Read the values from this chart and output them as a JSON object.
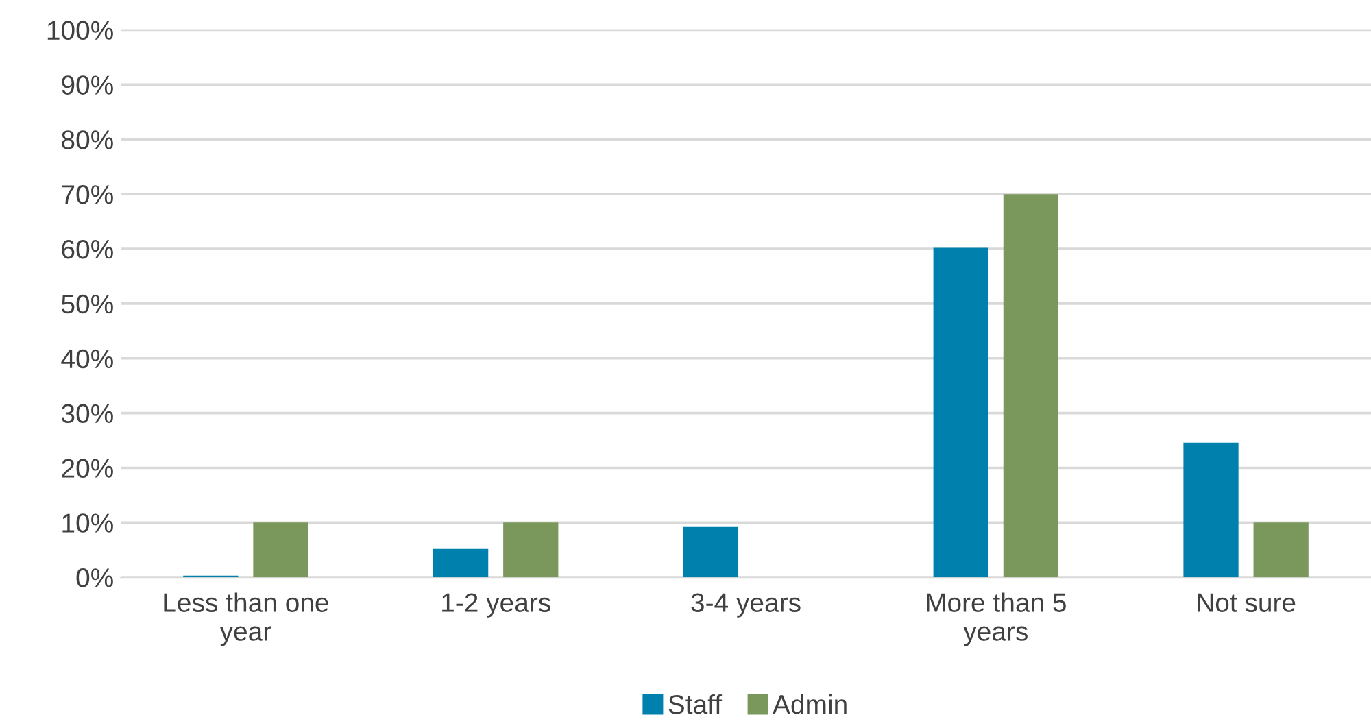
{
  "chart_data": {
    "type": "bar",
    "categories": [
      "Less than one\nyear",
      "1-2 years",
      "3-4 years",
      "More than 5\nyears",
      "Not sure"
    ],
    "series": [
      {
        "name": "Staff",
        "color": "#0081ad",
        "values": [
          0.3,
          5.2,
          9.2,
          60.2,
          24.6
        ]
      },
      {
        "name": "Admin",
        "color": "#7a985c",
        "values": [
          10,
          10,
          0,
          70,
          10
        ]
      }
    ],
    "ylim": [
      0,
      100
    ],
    "yticks": [
      {
        "value": 0,
        "label": "0%"
      },
      {
        "value": 10,
        "label": "10%"
      },
      {
        "value": 20,
        "label": "20%"
      },
      {
        "value": 30,
        "label": "30%"
      },
      {
        "value": 40,
        "label": "40%"
      },
      {
        "value": 50,
        "label": "50%"
      },
      {
        "value": 60,
        "label": "60%"
      },
      {
        "value": 70,
        "label": "70%"
      },
      {
        "value": 80,
        "label": "80%"
      },
      {
        "value": 90,
        "label": "90%"
      },
      {
        "value": 100,
        "label": "100%"
      }
    ],
    "grid": "y",
    "legend": "bottom"
  }
}
